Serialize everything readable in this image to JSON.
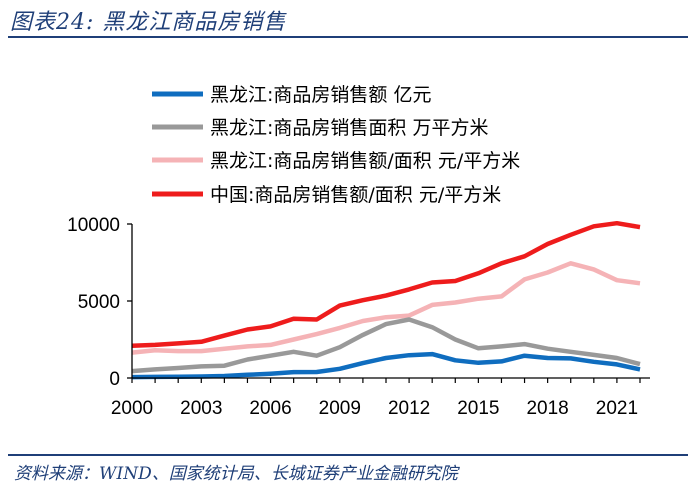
{
  "header": {
    "title": "图表24:  黑龙江商品房销售"
  },
  "footer": {
    "source": "资料来源：WIND、国家统计局、长城证券产业金融研究院"
  },
  "colors": {
    "blue": "#0f6dbf",
    "gray": "#999999",
    "pink": "#f5b3b6",
    "red": "#ee1c1c",
    "axis": "#000000"
  },
  "chart_data": {
    "type": "line",
    "title": "黑龙江商品房销售",
    "xlabel": "",
    "ylabel": "",
    "xlim": [
      2000,
      2022
    ],
    "ylim": [
      0,
      10000
    ],
    "x_ticks": [
      2000,
      2003,
      2006,
      2009,
      2012,
      2015,
      2018,
      2021
    ],
    "y_ticks": [
      0,
      5000,
      10000
    ],
    "legend_position": "top",
    "x": [
      2000,
      2001,
      2002,
      2003,
      2004,
      2005,
      2006,
      2007,
      2008,
      2009,
      2010,
      2011,
      2012,
      2013,
      2014,
      2015,
      2016,
      2017,
      2018,
      2019,
      2020,
      2021,
      2022
    ],
    "series": [
      {
        "name": "黑龙江:商品房销售额 亿元",
        "color": "#0f6dbf",
        "values": [
          60,
          70,
          80,
          100,
          130,
          210,
          280,
          380,
          390,
          600,
          970,
          1300,
          1480,
          1550,
          1150,
          990,
          1080,
          1450,
          1300,
          1270,
          1050,
          880,
          560
        ]
      },
      {
        "name": "黑龙江:商品房销售面积 万平方米",
        "color": "#999999",
        "values": [
          450,
          560,
          650,
          750,
          800,
          1200,
          1450,
          1700,
          1450,
          2000,
          2800,
          3500,
          3800,
          3300,
          2500,
          1930,
          2050,
          2200,
          1900,
          1700,
          1500,
          1300,
          900
        ]
      },
      {
        "name": "黑龙江:商品房销售额/面积 元/平方米",
        "color": "#f5b3b6",
        "values": [
          1650,
          1800,
          1750,
          1750,
          1900,
          2050,
          2150,
          2500,
          2850,
          3250,
          3700,
          3950,
          4050,
          4750,
          4900,
          5150,
          5300,
          6400,
          6850,
          7450,
          7050,
          6350,
          6150
        ]
      },
      {
        "name": "中国:商品房销售额/面积 元/平方米",
        "color": "#ee1c1c",
        "values": [
          2100,
          2150,
          2250,
          2350,
          2750,
          3150,
          3350,
          3850,
          3800,
          4700,
          5050,
          5350,
          5750,
          6200,
          6300,
          6800,
          7450,
          7900,
          8700,
          9300,
          9850,
          10050,
          9800
        ]
      }
    ]
  }
}
